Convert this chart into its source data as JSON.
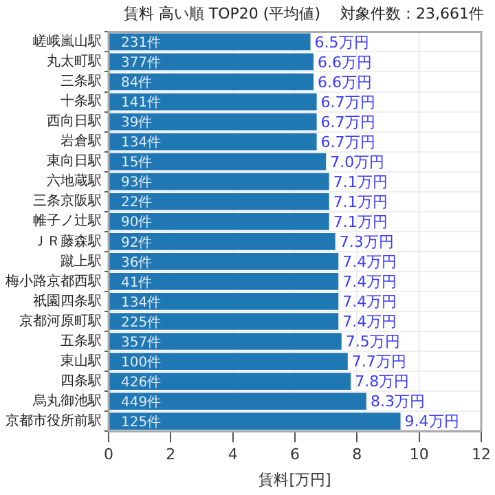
{
  "chart_data": {
    "type": "bar",
    "orientation": "horizontal",
    "title": "賃料 高い順 TOP20 (平均値)　 対象件数：23,661件",
    "xlabel": "賃料[万円]",
    "categories": [
      "嵯峨嵐山駅",
      "丸太町駅",
      "三条駅",
      "十条駅",
      "西向日駅",
      "岩倉駅",
      "東向日駅",
      "六地蔵駅",
      "三条京阪駅",
      "帷子ノ辻駅",
      "ＪＲ藤森駅",
      "蹴上駅",
      "梅小路京都西駅",
      "祇園四条駅",
      "京都河原町駅",
      "五条駅",
      "東山駅",
      "四条駅",
      "烏丸御池駅",
      "京都市役所前駅"
    ],
    "series": [
      {
        "color": "#1f77b4",
        "values": [
          6.5,
          6.6,
          6.6,
          6.7,
          6.7,
          6.7,
          7.0,
          7.1,
          7.1,
          7.1,
          7.3,
          7.4,
          7.4,
          7.4,
          7.4,
          7.5,
          7.7,
          7.8,
          8.3,
          9.4
        ],
        "value_labels": [
          "6.5万円",
          "6.6万円",
          "6.6万円",
          "6.7万円",
          "6.7万円",
          "6.7万円",
          "7.0万円",
          "7.1万円",
          "7.1万円",
          "7.1万円",
          "7.3万円",
          "7.4万円",
          "7.4万円",
          "7.4万円",
          "7.4万円",
          "7.5万円",
          "7.7万円",
          "7.8万円",
          "8.3万円",
          "9.4万円"
        ]
      }
    ],
    "annotations": [
      {
        "text": "231件",
        "y": "嵯峨嵐山駅"
      },
      {
        "text": "377件",
        "y": "丸太町駅"
      },
      {
        "text": "84件",
        "y": "三条駅"
      },
      {
        "text": "141件",
        "y": "十条駅"
      },
      {
        "text": "39件",
        "y": "西向日駅"
      },
      {
        "text": "134件",
        "y": "岩倉駅"
      },
      {
        "text": "15件",
        "y": "東向日駅"
      },
      {
        "text": "93件",
        "y": "六地蔵駅"
      },
      {
        "text": "22件",
        "y": "三条京阪駅"
      },
      {
        "text": "90件",
        "y": "帷子ノ辻駅"
      },
      {
        "text": "92件",
        "y": "ＪＲ藤森駅"
      },
      {
        "text": "36件",
        "y": "蹴上駅"
      },
      {
        "text": "41件",
        "y": "梅小路京都西駅"
      },
      {
        "text": "134件",
        "y": "祇園四条駅"
      },
      {
        "text": "225件",
        "y": "京都河原町駅"
      },
      {
        "text": "357件",
        "y": "五条駅"
      },
      {
        "text": "100件",
        "y": "東山駅"
      },
      {
        "text": "426件",
        "y": "四条駅"
      },
      {
        "text": "449件",
        "y": "烏丸御池駅"
      },
      {
        "text": "125件",
        "y": "京都市役所前駅"
      }
    ],
    "xlim": [
      0,
      12
    ],
    "xticks": [
      0,
      2,
      4,
      6,
      8,
      10,
      12
    ],
    "grid": true,
    "legend": false
  }
}
